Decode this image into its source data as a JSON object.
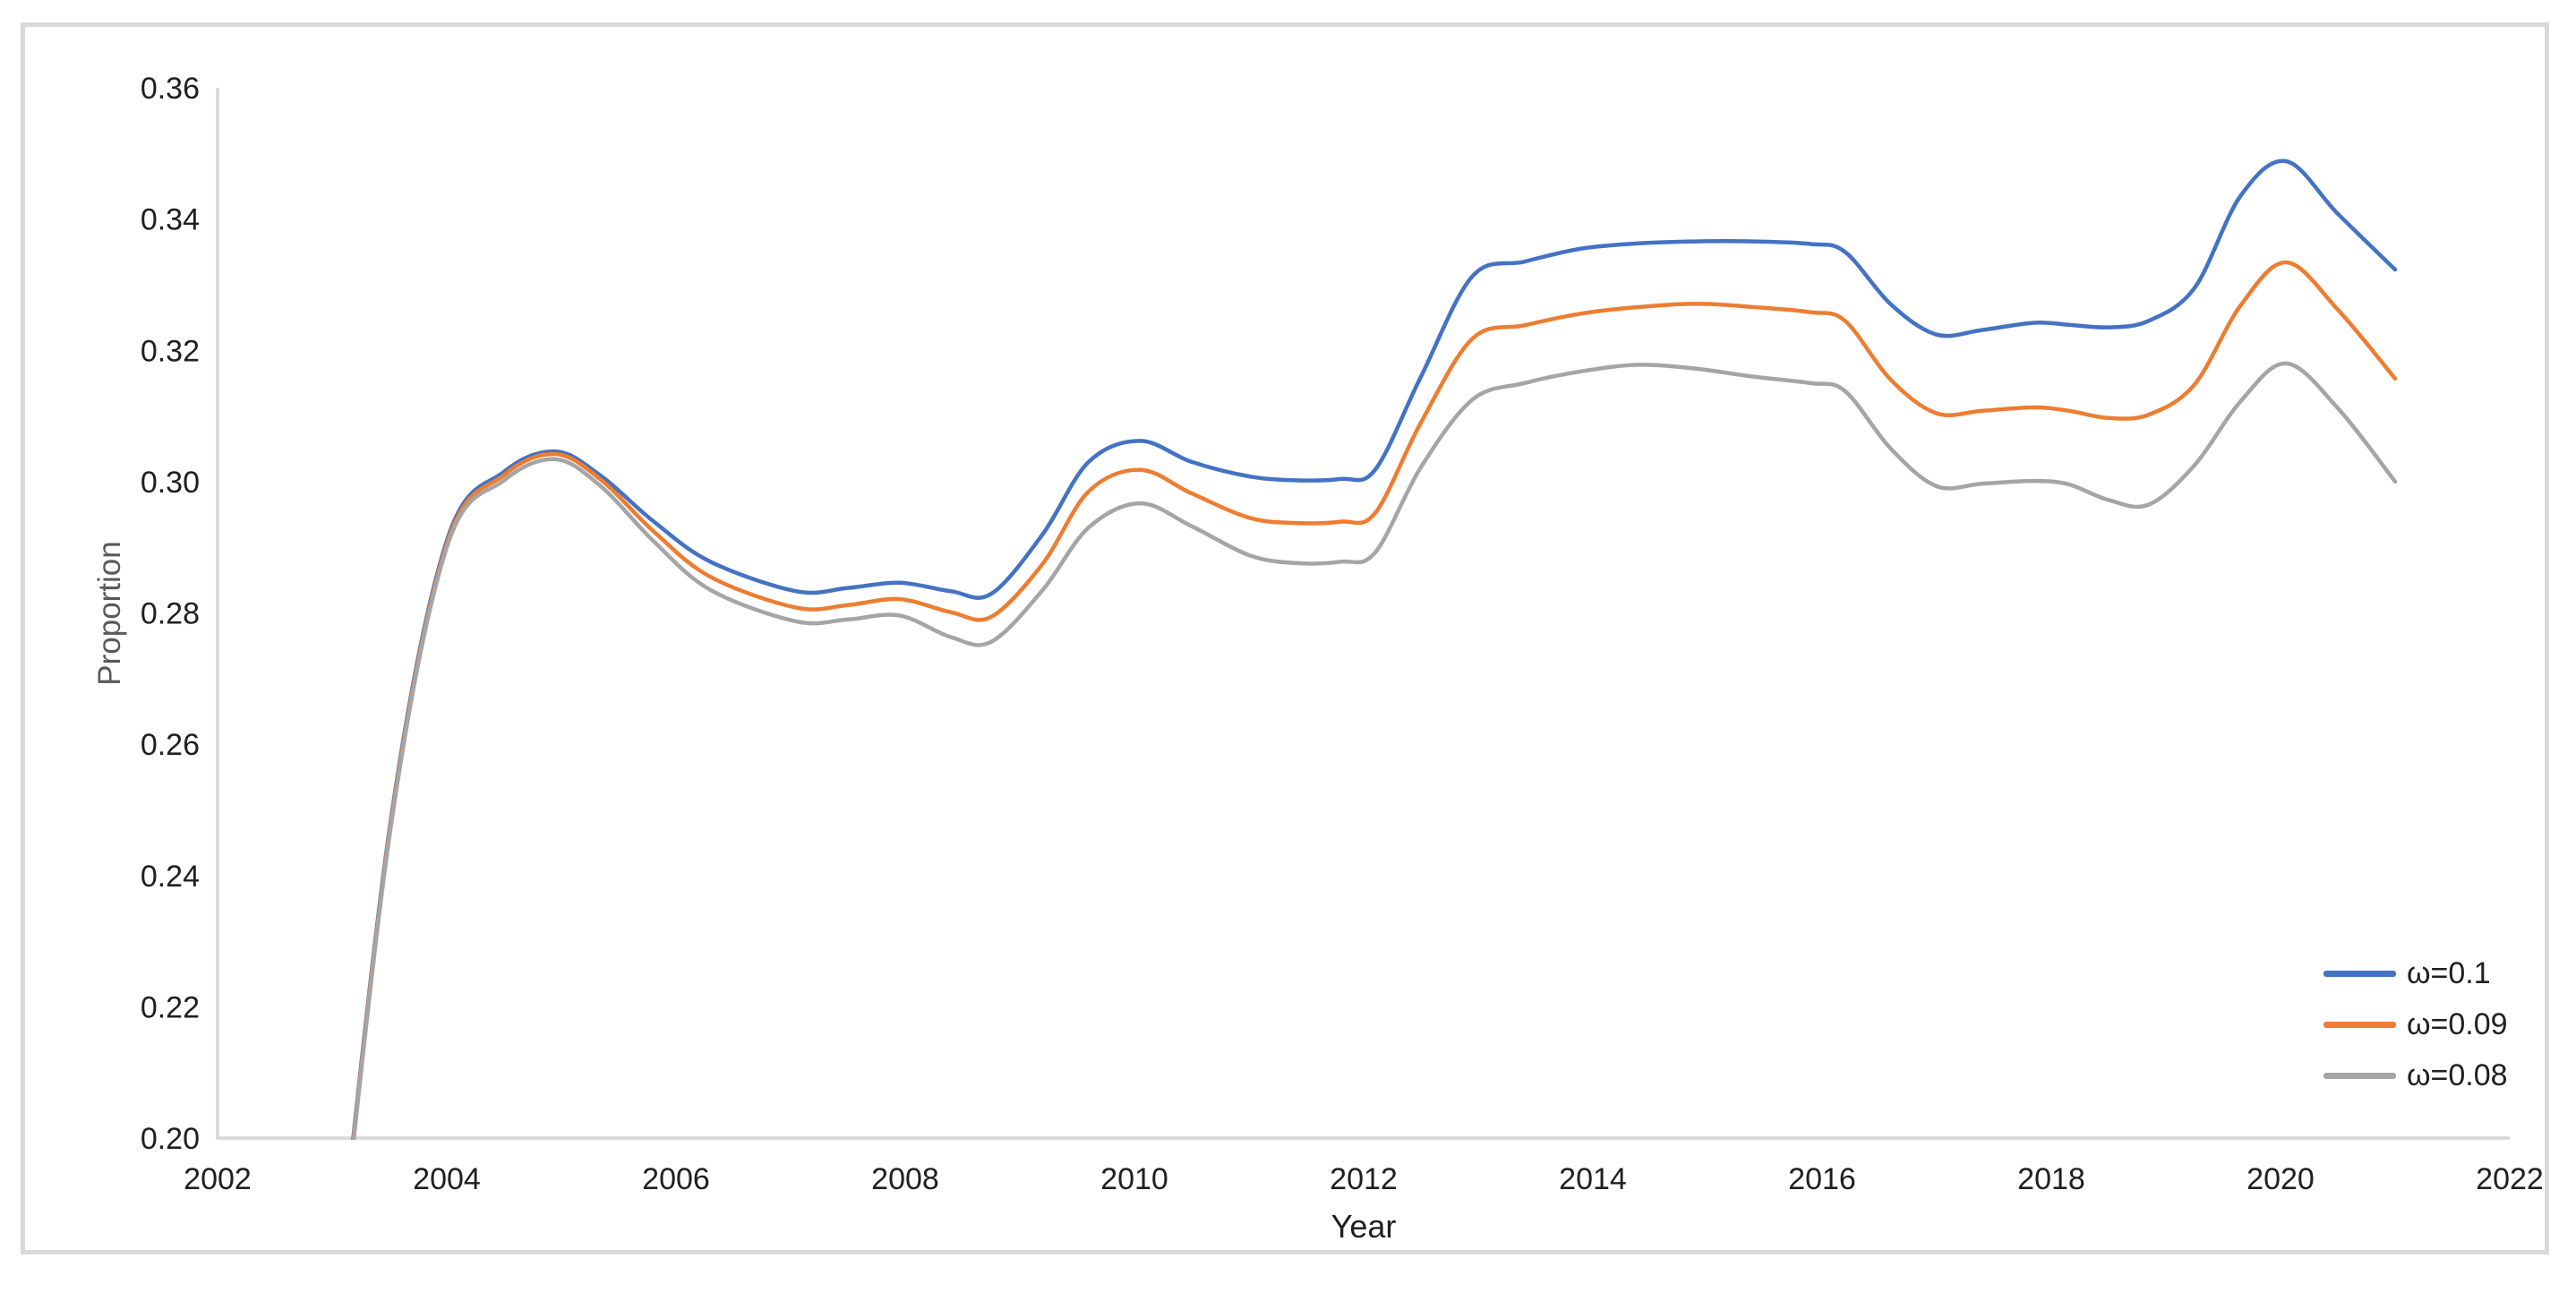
{
  "chart_data": {
    "type": "line",
    "title": "",
    "xlabel": "Year",
    "ylabel": "Proportion",
    "xlim": [
      2002,
      2022
    ],
    "ylim": [
      0.2,
      0.36
    ],
    "x_ticks": [
      2002,
      2004,
      2006,
      2008,
      2010,
      2012,
      2014,
      2016,
      2018,
      2020,
      2022
    ],
    "y_ticks": [
      0.2,
      0.22,
      0.24,
      0.26,
      0.28,
      0.3,
      0.32,
      0.34,
      0.36
    ],
    "grid": false,
    "legend_position": "bottom-right",
    "series": [
      {
        "name": "ω=0.1",
        "color": "#4472C4",
        "points": [
          [
            2003.0,
            0.17
          ],
          [
            2003.5,
            0.247
          ],
          [
            2004.0,
            0.291
          ],
          [
            2004.5,
            0.3015
          ],
          [
            2004.95,
            0.3046
          ],
          [
            2005.35,
            0.3008
          ],
          [
            2005.8,
            0.294
          ],
          [
            2006.3,
            0.2878
          ],
          [
            2007.05,
            0.2833
          ],
          [
            2007.5,
            0.2838
          ],
          [
            2007.95,
            0.2846
          ],
          [
            2008.4,
            0.2833
          ],
          [
            2008.75,
            0.2829
          ],
          [
            2009.2,
            0.292
          ],
          [
            2009.6,
            0.303
          ],
          [
            2010.05,
            0.3062
          ],
          [
            2010.5,
            0.303
          ],
          [
            2011.0,
            0.3008
          ],
          [
            2011.4,
            0.3002
          ],
          [
            2011.8,
            0.3004
          ],
          [
            2012.1,
            0.3018
          ],
          [
            2012.5,
            0.316
          ],
          [
            2012.95,
            0.3313
          ],
          [
            2013.4,
            0.3335
          ],
          [
            2013.9,
            0.3355
          ],
          [
            2014.4,
            0.3363
          ],
          [
            2014.9,
            0.3366
          ],
          [
            2015.4,
            0.3366
          ],
          [
            2015.9,
            0.3362
          ],
          [
            2016.2,
            0.335
          ],
          [
            2016.6,
            0.327
          ],
          [
            2017.0,
            0.3224
          ],
          [
            2017.4,
            0.3231
          ],
          [
            2017.85,
            0.3242
          ],
          [
            2018.15,
            0.3239
          ],
          [
            2018.5,
            0.3235
          ],
          [
            2018.85,
            0.3245
          ],
          [
            2019.25,
            0.3295
          ],
          [
            2019.65,
            0.3435
          ],
          [
            2020.05,
            0.3488
          ],
          [
            2020.5,
            0.3408
          ],
          [
            2021.0,
            0.3323
          ]
        ]
      },
      {
        "name": "ω=0.09",
        "color": "#ED7D31",
        "points": [
          [
            2003.0,
            0.1695
          ],
          [
            2003.5,
            0.2465
          ],
          [
            2004.0,
            0.2905
          ],
          [
            2004.5,
            0.301
          ],
          [
            2004.95,
            0.3042
          ],
          [
            2005.35,
            0.3002
          ],
          [
            2005.8,
            0.2925
          ],
          [
            2006.3,
            0.2855
          ],
          [
            2007.05,
            0.2808
          ],
          [
            2007.5,
            0.2812
          ],
          [
            2007.95,
            0.2821
          ],
          [
            2008.4,
            0.2801
          ],
          [
            2008.75,
            0.2794
          ],
          [
            2009.2,
            0.2875
          ],
          [
            2009.6,
            0.2985
          ],
          [
            2010.05,
            0.3018
          ],
          [
            2010.5,
            0.2982
          ],
          [
            2011.0,
            0.2945
          ],
          [
            2011.4,
            0.2937
          ],
          [
            2011.8,
            0.2939
          ],
          [
            2012.1,
            0.2952
          ],
          [
            2012.5,
            0.309
          ],
          [
            2012.95,
            0.3218
          ],
          [
            2013.4,
            0.3238
          ],
          [
            2013.9,
            0.3256
          ],
          [
            2014.4,
            0.3266
          ],
          [
            2014.9,
            0.3271
          ],
          [
            2015.4,
            0.3266
          ],
          [
            2015.9,
            0.3258
          ],
          [
            2016.2,
            0.3245
          ],
          [
            2016.6,
            0.3155
          ],
          [
            2017.0,
            0.3104
          ],
          [
            2017.4,
            0.3108
          ],
          [
            2017.85,
            0.3113
          ],
          [
            2018.15,
            0.3108
          ],
          [
            2018.5,
            0.3097
          ],
          [
            2018.85,
            0.3102
          ],
          [
            2019.25,
            0.3148
          ],
          [
            2019.65,
            0.3268
          ],
          [
            2020.05,
            0.3334
          ],
          [
            2020.5,
            0.3262
          ],
          [
            2021.0,
            0.3157
          ]
        ]
      },
      {
        "name": "ω=0.08",
        "color": "#A5A5A5",
        "points": [
          [
            2003.0,
            0.169
          ],
          [
            2003.5,
            0.246
          ],
          [
            2004.0,
            0.29
          ],
          [
            2004.5,
            0.3002
          ],
          [
            2004.95,
            0.3034
          ],
          [
            2005.35,
            0.2992
          ],
          [
            2005.8,
            0.291
          ],
          [
            2006.3,
            0.2835
          ],
          [
            2007.05,
            0.2787
          ],
          [
            2007.5,
            0.279
          ],
          [
            2007.95,
            0.2796
          ],
          [
            2008.4,
            0.2763
          ],
          [
            2008.75,
            0.2756
          ],
          [
            2009.2,
            0.2835
          ],
          [
            2009.6,
            0.293
          ],
          [
            2010.05,
            0.2967
          ],
          [
            2010.5,
            0.2932
          ],
          [
            2011.0,
            0.2888
          ],
          [
            2011.4,
            0.2876
          ],
          [
            2011.8,
            0.2878
          ],
          [
            2012.1,
            0.2892
          ],
          [
            2012.5,
            0.3022
          ],
          [
            2012.95,
            0.3125
          ],
          [
            2013.4,
            0.315
          ],
          [
            2013.9,
            0.3168
          ],
          [
            2014.4,
            0.3178
          ],
          [
            2014.9,
            0.3172
          ],
          [
            2015.4,
            0.316
          ],
          [
            2015.9,
            0.315
          ],
          [
            2016.2,
            0.3138
          ],
          [
            2016.6,
            0.305
          ],
          [
            2017.0,
            0.2993
          ],
          [
            2017.4,
            0.2997
          ],
          [
            2017.85,
            0.3001
          ],
          [
            2018.15,
            0.2996
          ],
          [
            2018.5,
            0.2972
          ],
          [
            2018.85,
            0.2965
          ],
          [
            2019.25,
            0.3025
          ],
          [
            2019.65,
            0.3122
          ],
          [
            2020.05,
            0.318
          ],
          [
            2020.5,
            0.3112
          ],
          [
            2021.0,
            0.3
          ]
        ]
      }
    ]
  },
  "ui": {
    "card_border_color": "#d9d9d9",
    "axis_line_color": "#d6d6d6",
    "tick_label_color": "#1f1f1f",
    "y_axis_title_color": "#595959",
    "x_axis_title_color": "#1f1f1f"
  }
}
